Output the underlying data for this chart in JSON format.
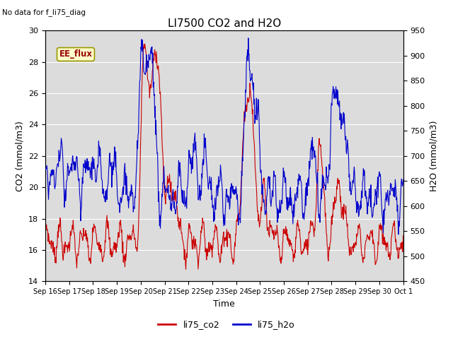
{
  "title": "LI7500 CO2 and H2O",
  "top_left_text": "No data for f_li75_diag",
  "box_label": "EE_flux",
  "xlabel": "Time",
  "ylabel_left": "CO2 (mmol/m3)",
  "ylabel_right": "H2O (mmol/m3)",
  "ylim_left": [
    14,
    30
  ],
  "ylim_right": [
    450,
    950
  ],
  "xtick_labels": [
    "Sep 16",
    "Sep 17",
    "Sep 18",
    "Sep 19",
    "Sep 20",
    "Sep 21",
    "Sep 22",
    "Sep 23",
    "Sep 24",
    "Sep 25",
    "Sep 26",
    "Sep 27",
    "Sep 28",
    "Sep 29",
    "Sep 30",
    "Oct 1"
  ],
  "legend_labels": [
    "li75_co2",
    "li75_h2o"
  ],
  "legend_colors": [
    "#cc0000",
    "#0000cc"
  ],
  "line_color_co2": "#cc0000",
  "line_color_h2o": "#0000cc",
  "bg_color": "#dcdcdc",
  "box_fill": "#ffffcc",
  "box_edge": "#999900",
  "box_text_color": "#990000",
  "yticks_left": [
    14,
    16,
    18,
    20,
    22,
    24,
    26,
    28,
    30
  ],
  "yticks_right": [
    450,
    500,
    550,
    600,
    650,
    700,
    750,
    800,
    850,
    900,
    950
  ],
  "n_days": 15,
  "n_points": 900
}
